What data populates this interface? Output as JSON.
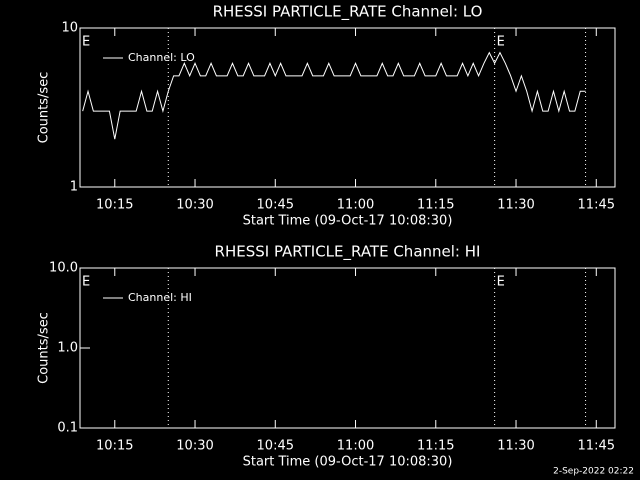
{
  "chart_data": [
    {
      "type": "line",
      "title": "RHESSI PARTICLE_RATE Channel: LO",
      "ylabel": "Counts/sec",
      "xlabel": "Start Time (09-Oct-17 10:08:30)",
      "log_y": true,
      "ylim": [
        1,
        10
      ],
      "yticks": [
        1,
        10
      ],
      "xlim": [
        "10:08:30",
        "11:48:30"
      ],
      "xticks": [
        "10:15",
        "10:30",
        "10:45",
        "11:00",
        "11:15",
        "11:30",
        "11:45"
      ],
      "vlines": [
        "10:25",
        "11:26",
        "11:43"
      ],
      "annotations": [
        {
          "text": "E",
          "x": "10:08:30"
        },
        {
          "text": "E",
          "x": "11:26"
        }
      ],
      "x": [
        "10:09",
        "10:10",
        "10:11",
        "10:12",
        "10:13",
        "10:14",
        "10:15",
        "10:16",
        "10:17",
        "10:18",
        "10:19",
        "10:20",
        "10:21",
        "10:22",
        "10:23",
        "10:24",
        "10:25",
        "10:26",
        "10:27",
        "10:28",
        "10:29",
        "10:30",
        "10:31",
        "10:32",
        "10:33",
        "10:34",
        "10:35",
        "10:36",
        "10:37",
        "10:38",
        "10:39",
        "10:40",
        "10:41",
        "10:42",
        "10:43",
        "10:44",
        "10:45",
        "10:46",
        "10:47",
        "10:48",
        "10:49",
        "10:50",
        "10:51",
        "10:52",
        "10:53",
        "10:54",
        "10:55",
        "10:56",
        "10:57",
        "10:58",
        "10:59",
        "11:00",
        "11:01",
        "11:02",
        "11:03",
        "11:04",
        "11:05",
        "11:06",
        "11:07",
        "11:08",
        "11:09",
        "11:10",
        "11:11",
        "11:12",
        "11:13",
        "11:14",
        "11:15",
        "11:16",
        "11:17",
        "11:18",
        "11:19",
        "11:20",
        "11:21",
        "11:22",
        "11:23",
        "11:24",
        "11:25",
        "11:26",
        "11:27",
        "11:28",
        "11:29",
        "11:30",
        "11:31",
        "11:32",
        "11:33",
        "11:34",
        "11:35",
        "11:36",
        "11:37",
        "11:38",
        "11:39",
        "11:40",
        "11:41",
        "11:42",
        "11:43"
      ],
      "series": [
        {
          "name": "Channel: LO",
          "color": "#ffffff",
          "values": [
            3,
            4,
            3,
            3,
            3,
            3,
            2,
            3,
            3,
            3,
            3,
            4,
            3,
            3,
            4,
            3,
            4,
            5,
            5,
            6,
            5,
            6,
            5,
            5,
            6,
            5,
            5,
            5,
            6,
            5,
            5,
            6,
            5,
            5,
            5,
            6,
            5,
            6,
            5,
            5,
            5,
            5,
            6,
            5,
            5,
            5,
            6,
            5,
            5,
            5,
            5,
            6,
            5,
            5,
            5,
            5,
            6,
            5,
            5,
            6,
            5,
            5,
            5,
            6,
            5,
            5,
            5,
            6,
            5,
            5,
            5,
            6,
            5,
            6,
            5,
            6,
            7,
            6,
            7,
            6,
            5,
            4,
            5,
            4,
            3,
            4,
            3,
            3,
            4,
            3,
            4,
            3,
            3,
            4,
            4
          ]
        }
      ]
    },
    {
      "type": "line",
      "title": "RHESSI PARTICLE_RATE Channel: HI",
      "ylabel": "Counts/sec",
      "xlabel": "Start Time (09-Oct-17 10:08:30)",
      "log_y": true,
      "ylim": [
        0.1,
        10
      ],
      "yticks": [
        0.1,
        {
          "value": 1,
          "label": "1.0"
        },
        {
          "value": 10,
          "label": "10.0"
        }
      ],
      "xlim": [
        "10:08:30",
        "11:48:30"
      ],
      "xticks": [
        "10:15",
        "10:30",
        "10:45",
        "11:00",
        "11:15",
        "11:30",
        "11:45"
      ],
      "vlines": [
        "10:25",
        "11:26",
        "11:43"
      ],
      "annotations": [
        {
          "text": "E",
          "x": "10:08:30"
        },
        {
          "text": "E",
          "x": "11:26"
        }
      ],
      "x": [],
      "series": [
        {
          "name": "Channel: HI",
          "color": "#ffffff",
          "values": []
        }
      ]
    }
  ],
  "footer": "2-Sep-2022 02:22"
}
